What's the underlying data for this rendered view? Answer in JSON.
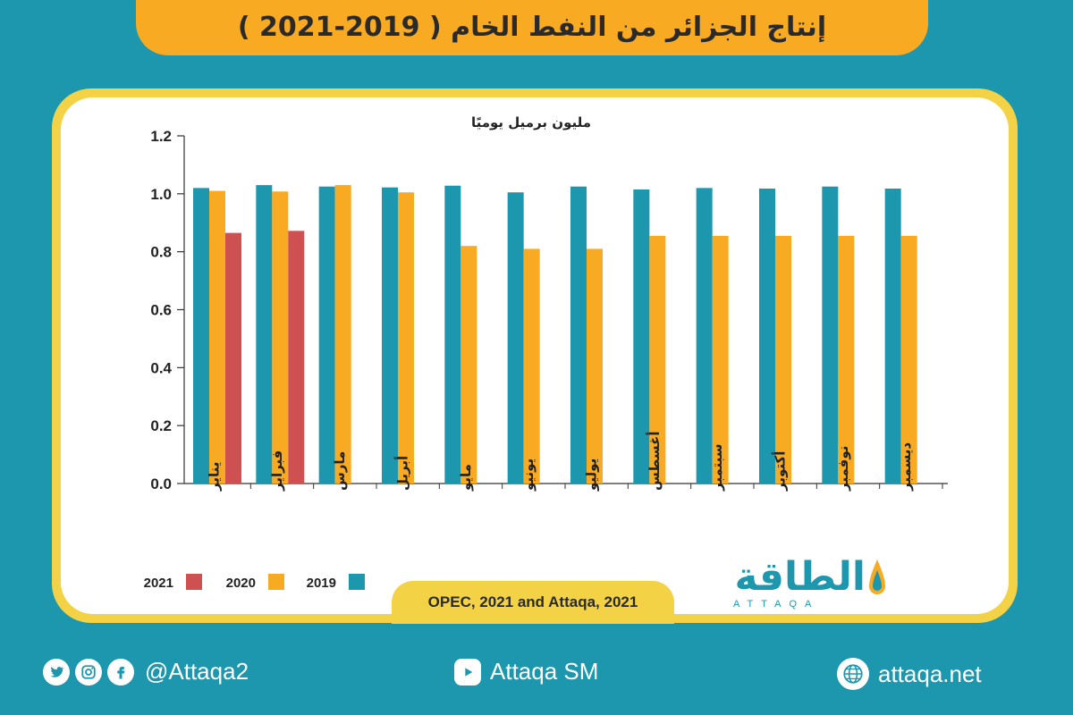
{
  "title": "إنتاج الجزائر من النفط الخام ( 2019-2021 )",
  "colors": {
    "y2019": "#1d97ae",
    "y2020": "#f8ab22",
    "y2021": "#cf5050",
    "background": "#1d97ae",
    "frame": "#f3d345"
  },
  "chart_data": {
    "type": "bar",
    "title": "إنتاج الجزائر من النفط الخام ( 2019-2021 )",
    "ylabel": "مليون برميل يوميًا",
    "xlabel": "",
    "ylim": [
      0,
      1.2
    ],
    "yticks": [
      "0.0",
      "0.2",
      "0.4",
      "0.6",
      "0.8",
      "1.0",
      "1.2"
    ],
    "grid": false,
    "legend_position": "bottom-left",
    "categories": [
      "يناير",
      "فبراير",
      "مارس",
      "أبريل",
      "مايو",
      "يونيو",
      "يوليو",
      "أغسطس",
      "سبتمبر",
      "أكتوبر",
      "نوفمبر",
      "ديسمبر"
    ],
    "series": [
      {
        "name": "2019",
        "color": "#1d97ae",
        "values": [
          1.02,
          1.03,
          1.025,
          1.022,
          1.028,
          1.005,
          1.025,
          1.015,
          1.02,
          1.018,
          1.025,
          1.018
        ]
      },
      {
        "name": "2020",
        "color": "#f8ab22",
        "values": [
          1.01,
          1.008,
          1.03,
          1.005,
          0.82,
          0.81,
          0.81,
          0.855,
          0.855,
          0.855,
          0.855,
          0.855
        ]
      },
      {
        "name": "2021",
        "color": "#cf5050",
        "values": [
          0.865,
          0.872,
          null,
          null,
          null,
          null,
          null,
          null,
          null,
          null,
          null,
          null
        ]
      }
    ]
  },
  "source": "OPEC, 2021 and Attaqa, 2021",
  "logo": {
    "arabic": "الطاقة",
    "english": "ATTAQA"
  },
  "footer": {
    "social_handle": "@Attaqa2",
    "youtube": "Attaqa SM",
    "website": "attaqa.net"
  }
}
